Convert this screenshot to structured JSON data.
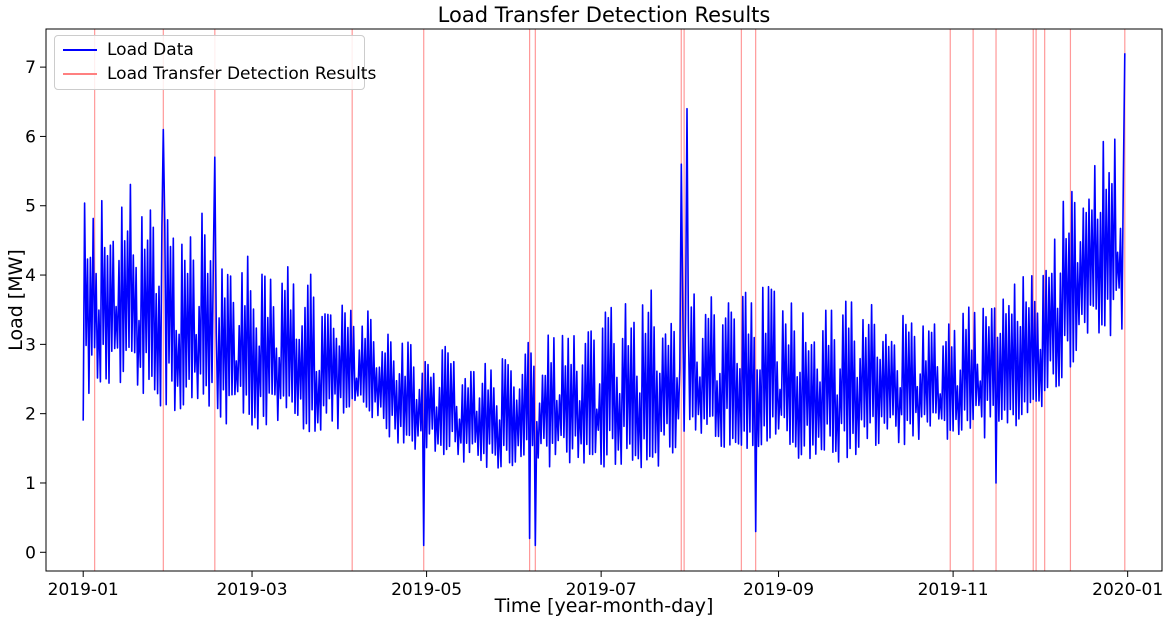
{
  "chart_data": {
    "type": "line",
    "title": "Load Transfer Detection Results",
    "xlabel": "Time [year-month-day]",
    "ylabel": "Load [MW]",
    "x_ticks": [
      "2019-01",
      "2019-03",
      "2019-05",
      "2019-07",
      "2019-09",
      "2019-11",
      "2020-01"
    ],
    "y_ticks": [
      "0",
      "1",
      "2",
      "3",
      "4",
      "5",
      "6",
      "7"
    ],
    "xlim": [
      "2018-12-19",
      "2020-01-13"
    ],
    "ylim": [
      -0.27,
      7.55
    ],
    "grid": false,
    "legend_placement": "upper-left",
    "series": [
      {
        "name": "Load Data",
        "color": "#0000ff",
        "approximate_envelope": {
          "dates": [
            "2019-01-01",
            "2019-01-15",
            "2019-01-29",
            "2019-02-12",
            "2019-02-26",
            "2019-03-12",
            "2019-03-26",
            "2019-04-09",
            "2019-04-23",
            "2019-05-07",
            "2019-05-21",
            "2019-06-04",
            "2019-06-18",
            "2019-07-02",
            "2019-07-16",
            "2019-07-30",
            "2019-08-13",
            "2019-08-27",
            "2019-09-10",
            "2019-09-24",
            "2019-10-08",
            "2019-10-22",
            "2019-11-05",
            "2019-11-19",
            "2019-12-03",
            "2019-12-17",
            "2019-12-31"
          ],
          "high": [
            5.2,
            5.4,
            5.2,
            4.9,
            4.3,
            4.2,
            4.0,
            3.6,
            3.1,
            3.0,
            2.9,
            3.0,
            3.3,
            3.6,
            3.8,
            3.9,
            3.9,
            3.9,
            3.5,
            3.7,
            3.6,
            3.3,
            3.5,
            4.1,
            4.6,
            5.9,
            6.4
          ],
          "low": [
            2.3,
            2.2,
            2.0,
            1.9,
            1.8,
            1.7,
            1.7,
            1.9,
            1.5,
            1.4,
            1.2,
            1.2,
            1.2,
            1.2,
            1.2,
            1.3,
            1.5,
            1.5,
            1.3,
            1.3,
            1.5,
            1.6,
            1.6,
            1.7,
            2.0,
            2.9,
            3.2
          ]
        },
        "notable_points": [
          {
            "date": "2019-01-01",
            "value": 1.9
          },
          {
            "date": "2019-01-29",
            "value": 6.1
          },
          {
            "date": "2019-02-16",
            "value": 5.7
          },
          {
            "date": "2019-04-30",
            "value": 0.1
          },
          {
            "date": "2019-06-06",
            "value": 0.2
          },
          {
            "date": "2019-06-08",
            "value": 0.1
          },
          {
            "date": "2019-07-29",
            "value": 5.6
          },
          {
            "date": "2019-07-31",
            "value": 6.4
          },
          {
            "date": "2019-08-24",
            "value": 0.3
          },
          {
            "date": "2019-11-16",
            "value": 1.0
          },
          {
            "date": "2019-12-31",
            "value": 7.2
          }
        ]
      },
      {
        "name": "Load Transfer Detection Results",
        "color": "#ff8080",
        "detection_dates": [
          "2019-01-05",
          "2019-01-29",
          "2019-02-16",
          "2019-04-05",
          "2019-04-30",
          "2019-06-06",
          "2019-06-08",
          "2019-07-29",
          "2019-07-30",
          "2019-08-19",
          "2019-08-24",
          "2019-10-31",
          "2019-11-08",
          "2019-11-16",
          "2019-11-29",
          "2019-11-30",
          "2019-12-03",
          "2019-12-12",
          "2019-12-31"
        ]
      }
    ]
  }
}
